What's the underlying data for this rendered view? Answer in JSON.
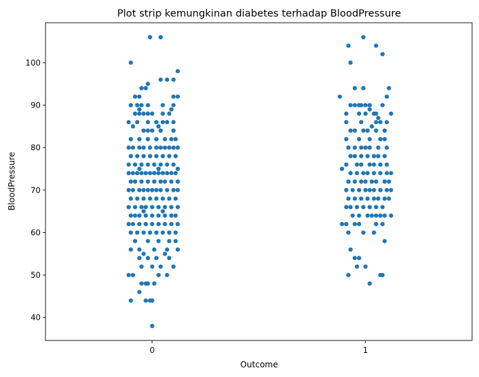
{
  "chart_data": {
    "type": "scatter",
    "subtype": "strip",
    "title": "Plot strip kemungkinan diabetes terhadap BloodPressure",
    "xlabel": "Outcome",
    "ylabel": "BloodPressure",
    "categories": [
      "0",
      "1"
    ],
    "xlim": [
      -0.5,
      1.5
    ],
    "ylim": [
      34.6,
      109.4
    ],
    "yticks": [
      40,
      50,
      60,
      70,
      80,
      90,
      100
    ],
    "grid": false,
    "legend": "none",
    "marker_color": "#1f77b4",
    "series": [
      {
        "category": "0",
        "points": [
          [
            -0.01,
            106
          ],
          [
            0.04,
            106
          ],
          [
            -0.1,
            100
          ],
          [
            0.12,
            98
          ],
          [
            0.04,
            96
          ],
          [
            0.07,
            96
          ],
          [
            0.1,
            96
          ],
          [
            -0.02,
            95
          ],
          [
            -0.03,
            94
          ],
          [
            -0.05,
            94
          ],
          [
            -0.08,
            92
          ],
          [
            -0.06,
            92
          ],
          [
            0.12,
            92
          ],
          [
            0.1,
            92
          ],
          [
            -0.1,
            90
          ],
          [
            -0.07,
            90
          ],
          [
            -0.05,
            90
          ],
          [
            -0.02,
            90
          ],
          [
            0.05,
            90
          ],
          [
            0.1,
            90
          ],
          [
            -0.06,
            89
          ],
          [
            0.09,
            89
          ],
          [
            -0.08,
            88
          ],
          [
            -0.06,
            88
          ],
          [
            -0.04,
            88
          ],
          [
            -0.02,
            88
          ],
          [
            0.0,
            88
          ],
          [
            0.05,
            88
          ],
          [
            0.08,
            88
          ],
          [
            -0.11,
            86
          ],
          [
            -0.07,
            86
          ],
          [
            -0.02,
            86
          ],
          [
            0.02,
            86
          ],
          [
            0.05,
            86
          ],
          [
            0.07,
            86
          ],
          [
            0.1,
            86
          ],
          [
            -0.09,
            85
          ],
          [
            0.03,
            85
          ],
          [
            -0.04,
            84
          ],
          [
            -0.02,
            84
          ],
          [
            0.0,
            84
          ],
          [
            0.04,
            84
          ],
          [
            0.1,
            84
          ],
          [
            -0.1,
            82
          ],
          [
            -0.06,
            82
          ],
          [
            -0.02,
            82
          ],
          [
            0.02,
            82
          ],
          [
            0.06,
            82
          ],
          [
            0.09,
            82
          ],
          [
            0.11,
            82
          ],
          [
            -0.11,
            80
          ],
          [
            -0.09,
            80
          ],
          [
            -0.06,
            80
          ],
          [
            -0.04,
            80
          ],
          [
            -0.01,
            80
          ],
          [
            0.02,
            80
          ],
          [
            0.04,
            80
          ],
          [
            0.06,
            80
          ],
          [
            0.08,
            80
          ],
          [
            0.1,
            80
          ],
          [
            0.12,
            80
          ],
          [
            -0.1,
            78
          ],
          [
            -0.07,
            78
          ],
          [
            -0.04,
            78
          ],
          [
            -0.01,
            78
          ],
          [
            0.02,
            78
          ],
          [
            0.05,
            78
          ],
          [
            0.08,
            78
          ],
          [
            0.11,
            78
          ],
          [
            -0.11,
            76
          ],
          [
            -0.08,
            76
          ],
          [
            -0.05,
            76
          ],
          [
            -0.02,
            76
          ],
          [
            0.01,
            76
          ],
          [
            0.04,
            76
          ],
          [
            0.07,
            76
          ],
          [
            0.1,
            76
          ],
          [
            -0.06,
            75
          ],
          [
            0.03,
            75
          ],
          [
            0.12,
            75
          ],
          [
            -0.11,
            74
          ],
          [
            -0.09,
            74
          ],
          [
            -0.07,
            74
          ],
          [
            -0.05,
            74
          ],
          [
            -0.03,
            74
          ],
          [
            -0.01,
            74
          ],
          [
            0.01,
            74
          ],
          [
            0.03,
            74
          ],
          [
            0.05,
            74
          ],
          [
            0.07,
            74
          ],
          [
            0.09,
            74
          ],
          [
            0.11,
            74
          ],
          [
            -0.1,
            72
          ],
          [
            -0.08,
            72
          ],
          [
            -0.05,
            72
          ],
          [
            -0.02,
            72
          ],
          [
            0.01,
            72
          ],
          [
            0.04,
            72
          ],
          [
            0.06,
            72
          ],
          [
            0.09,
            72
          ],
          [
            0.12,
            72
          ],
          [
            -0.11,
            70
          ],
          [
            -0.09,
            70
          ],
          [
            -0.06,
            70
          ],
          [
            -0.04,
            70
          ],
          [
            -0.02,
            70
          ],
          [
            0.0,
            70
          ],
          [
            0.02,
            70
          ],
          [
            0.04,
            70
          ],
          [
            0.07,
            70
          ],
          [
            0.1,
            70
          ],
          [
            0.12,
            70
          ],
          [
            -0.1,
            68
          ],
          [
            -0.07,
            68
          ],
          [
            -0.04,
            68
          ],
          [
            -0.01,
            68
          ],
          [
            0.02,
            68
          ],
          [
            0.05,
            68
          ],
          [
            0.08,
            68
          ],
          [
            0.11,
            68
          ],
          [
            -0.11,
            66
          ],
          [
            -0.08,
            66
          ],
          [
            -0.05,
            66
          ],
          [
            -0.03,
            66
          ],
          [
            0.0,
            66
          ],
          [
            0.03,
            66
          ],
          [
            0.06,
            66
          ],
          [
            0.09,
            66
          ],
          [
            0.12,
            66
          ],
          [
            -0.04,
            65
          ],
          [
            0.05,
            65
          ],
          [
            -0.1,
            64
          ],
          [
            -0.08,
            64
          ],
          [
            -0.06,
            64
          ],
          [
            -0.03,
            64
          ],
          [
            0.0,
            64
          ],
          [
            0.03,
            64
          ],
          [
            0.06,
            64
          ],
          [
            0.09,
            64
          ],
          [
            0.11,
            64
          ],
          [
            -0.11,
            62
          ],
          [
            -0.09,
            62
          ],
          [
            -0.06,
            62
          ],
          [
            -0.03,
            62
          ],
          [
            0.0,
            62
          ],
          [
            0.03,
            62
          ],
          [
            0.06,
            62
          ],
          [
            0.09,
            62
          ],
          [
            0.12,
            62
          ],
          [
            -0.1,
            60
          ],
          [
            -0.07,
            60
          ],
          [
            -0.04,
            60
          ],
          [
            -0.01,
            60
          ],
          [
            0.02,
            60
          ],
          [
            0.05,
            60
          ],
          [
            0.08,
            60
          ],
          [
            0.11,
            60
          ],
          [
            -0.08,
            58
          ],
          [
            -0.02,
            58
          ],
          [
            0.03,
            58
          ],
          [
            0.08,
            58
          ],
          [
            0.11,
            58
          ],
          [
            -0.1,
            56
          ],
          [
            -0.06,
            56
          ],
          [
            0.01,
            56
          ],
          [
            0.07,
            56
          ],
          [
            0.12,
            56
          ],
          [
            -0.04,
            55
          ],
          [
            0.06,
            55
          ],
          [
            -0.06,
            54
          ],
          [
            -0.02,
            54
          ],
          [
            0.02,
            54
          ],
          [
            0.08,
            54
          ],
          [
            -0.05,
            52
          ],
          [
            0.0,
            52
          ],
          [
            0.04,
            52
          ],
          [
            0.1,
            52
          ],
          [
            -0.11,
            50
          ],
          [
            -0.09,
            50
          ],
          [
            0.03,
            50
          ],
          [
            0.07,
            50
          ],
          [
            -0.05,
            48
          ],
          [
            -0.03,
            48
          ],
          [
            -0.02,
            48
          ],
          [
            0.01,
            48
          ],
          [
            -0.06,
            46
          ],
          [
            -0.1,
            44
          ],
          [
            -0.03,
            44
          ],
          [
            -0.01,
            44
          ],
          [
            0.0,
            44
          ],
          [
            0.0,
            38
          ]
        ]
      },
      {
        "category": "1",
        "points": [
          [
            0.99,
            106
          ],
          [
            1.05,
            104
          ],
          [
            0.92,
            104
          ],
          [
            1.08,
            102
          ],
          [
            0.93,
            100
          ],
          [
            1.11,
            94
          ],
          [
            0.95,
            94
          ],
          [
            0.99,
            94
          ],
          [
            0.88,
            92
          ],
          [
            1.1,
            92
          ],
          [
            0.93,
            90
          ],
          [
            0.95,
            90
          ],
          [
            0.97,
            90
          ],
          [
            0.98,
            90
          ],
          [
            1.0,
            90
          ],
          [
            1.02,
            90
          ],
          [
            1.08,
            90
          ],
          [
            1.02,
            89
          ],
          [
            0.91,
            88
          ],
          [
            0.97,
            88
          ],
          [
            1.0,
            88
          ],
          [
            1.04,
            88
          ],
          [
            1.05,
            88
          ],
          [
            1.12,
            88
          ],
          [
            1.06,
            87
          ],
          [
            0.91,
            86
          ],
          [
            0.98,
            86
          ],
          [
            1.05,
            86
          ],
          [
            1.07,
            86
          ],
          [
            1.1,
            86
          ],
          [
            1.03,
            85
          ],
          [
            0.93,
            84
          ],
          [
            0.95,
            84
          ],
          [
            0.99,
            84
          ],
          [
            1.01,
            84
          ],
          [
            1.05,
            84
          ],
          [
            1.09,
            84
          ],
          [
            0.91,
            82
          ],
          [
            0.97,
            82
          ],
          [
            1.02,
            82
          ],
          [
            1.07,
            82
          ],
          [
            1.09,
            82
          ],
          [
            0.92,
            80
          ],
          [
            0.95,
            80
          ],
          [
            0.98,
            80
          ],
          [
            1.0,
            80
          ],
          [
            1.02,
            80
          ],
          [
            1.06,
            80
          ],
          [
            1.1,
            80
          ],
          [
            0.93,
            78
          ],
          [
            0.95,
            78
          ],
          [
            0.98,
            78
          ],
          [
            1.01,
            78
          ],
          [
            1.04,
            78
          ],
          [
            1.06,
            78
          ],
          [
            1.09,
            78
          ],
          [
            0.91,
            76
          ],
          [
            0.96,
            76
          ],
          [
            0.98,
            76
          ],
          [
            1.02,
            76
          ],
          [
            1.04,
            76
          ],
          [
            1.07,
            76
          ],
          [
            1.1,
            76
          ],
          [
            0.89,
            75
          ],
          [
            0.93,
            74
          ],
          [
            0.96,
            74
          ],
          [
            0.99,
            74
          ],
          [
            1.01,
            74
          ],
          [
            1.04,
            74
          ],
          [
            1.07,
            74
          ],
          [
            1.1,
            74
          ],
          [
            1.12,
            74
          ],
          [
            0.92,
            72
          ],
          [
            0.95,
            72
          ],
          [
            0.98,
            72
          ],
          [
            1.0,
            72
          ],
          [
            1.03,
            72
          ],
          [
            1.05,
            72
          ],
          [
            1.09,
            72
          ],
          [
            1.11,
            72
          ],
          [
            0.91,
            70
          ],
          [
            0.94,
            70
          ],
          [
            0.97,
            70
          ],
          [
            1.0,
            70
          ],
          [
            1.02,
            70
          ],
          [
            1.04,
            70
          ],
          [
            1.07,
            70
          ],
          [
            1.1,
            70
          ],
          [
            1.12,
            70
          ],
          [
            0.92,
            68
          ],
          [
            0.95,
            68
          ],
          [
            0.98,
            68
          ],
          [
            1.01,
            68
          ],
          [
            1.04,
            68
          ],
          [
            1.06,
            68
          ],
          [
            1.09,
            68
          ],
          [
            1.11,
            68
          ],
          [
            0.91,
            66
          ],
          [
            0.93,
            66
          ],
          [
            0.96,
            66
          ],
          [
            0.99,
            66
          ],
          [
            1.02,
            66
          ],
          [
            1.05,
            66
          ],
          [
            1.08,
            66
          ],
          [
            0.94,
            64
          ],
          [
            0.97,
            64
          ],
          [
            1.01,
            64
          ],
          [
            1.03,
            64
          ],
          [
            1.05,
            64
          ],
          [
            1.07,
            64
          ],
          [
            1.09,
            64
          ],
          [
            1.12,
            64
          ],
          [
            0.89,
            62
          ],
          [
            0.91,
            62
          ],
          [
            0.95,
            62
          ],
          [
            0.97,
            62
          ],
          [
            1.05,
            62
          ],
          [
            1.08,
            62
          ],
          [
            0.92,
            60
          ],
          [
            0.99,
            60
          ],
          [
            1.04,
            60
          ],
          [
            1.09,
            58
          ],
          [
            0.93,
            56
          ],
          [
            0.95,
            54
          ],
          [
            0.97,
            54
          ],
          [
            0.96,
            52
          ],
          [
            1.0,
            52
          ],
          [
            0.92,
            50
          ],
          [
            1.07,
            50
          ],
          [
            1.08,
            50
          ],
          [
            1.02,
            48
          ]
        ]
      }
    ]
  }
}
